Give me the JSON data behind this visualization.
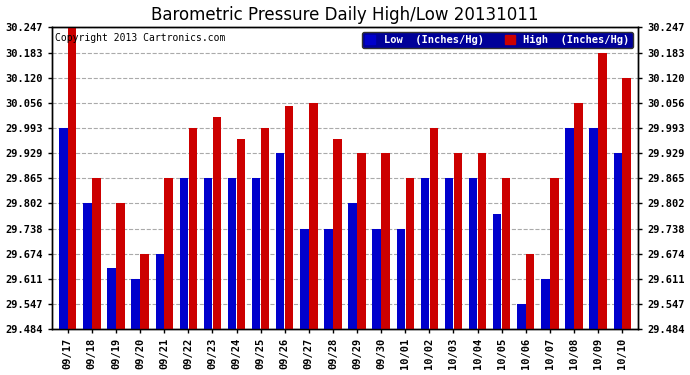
{
  "title": "Barometric Pressure Daily High/Low 20131011",
  "copyright": "Copyright 2013 Cartronics.com",
  "legend_low": "Low  (Inches/Hg)",
  "legend_high": "High  (Inches/Hg)",
  "dates": [
    "09/17",
    "09/18",
    "09/19",
    "09/20",
    "09/21",
    "09/22",
    "09/23",
    "09/24",
    "09/25",
    "09/26",
    "09/27",
    "09/28",
    "09/29",
    "09/30",
    "10/01",
    "10/02",
    "10/03",
    "10/04",
    "10/05",
    "10/06",
    "10/07",
    "10/08",
    "10/09",
    "10/10"
  ],
  "low_values": [
    29.993,
    29.802,
    29.638,
    29.611,
    29.674,
    29.865,
    29.865,
    29.865,
    29.865,
    29.929,
    29.738,
    29.738,
    29.802,
    29.738,
    29.738,
    29.865,
    29.865,
    29.865,
    29.774,
    29.547,
    29.611,
    29.993,
    29.993,
    29.929
  ],
  "high_values": [
    30.247,
    29.865,
    29.802,
    29.674,
    29.865,
    29.993,
    30.02,
    29.965,
    29.993,
    30.047,
    30.056,
    29.965,
    29.929,
    29.929,
    29.865,
    29.993,
    29.929,
    29.929,
    29.865,
    29.674,
    29.865,
    30.056,
    30.183,
    30.12
  ],
  "bar_color_low": "#0000cc",
  "bar_color_high": "#cc0000",
  "bg_color": "#ffffff",
  "plot_bg_color": "#ffffff",
  "grid_color": "#aaaaaa",
  "ylim_min": 29.484,
  "ylim_max": 30.247,
  "yticks": [
    29.484,
    29.547,
    29.611,
    29.674,
    29.738,
    29.802,
    29.865,
    29.929,
    29.993,
    30.056,
    30.12,
    30.183,
    30.247
  ],
  "title_fontsize": 12,
  "axis_fontsize": 7.5,
  "copyright_fontsize": 7,
  "bar_width": 0.35,
  "bar_gap": 0.02
}
